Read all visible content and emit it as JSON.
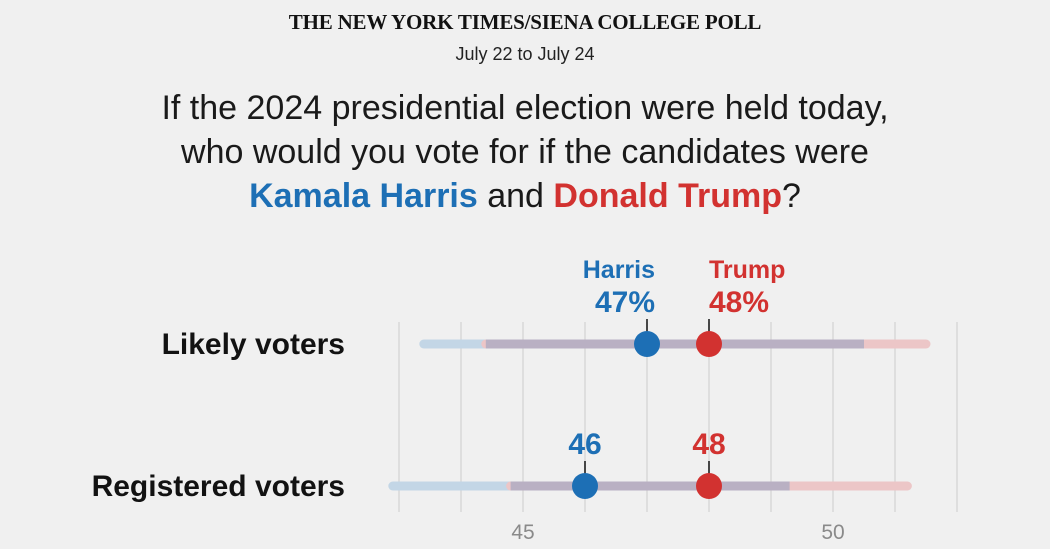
{
  "header": {
    "masthead": "THE NEW YORK TIMES/SIENA COLLEGE POLL",
    "dates": "July 22 to July 24",
    "question_line1": "If the 2024 presidential election were held today,",
    "question_line2": "who would you vote for if the candidates were",
    "candidate_a": "Kamala Harris",
    "joiner": "and",
    "candidate_b": "Donald Trump",
    "end_mark": "?"
  },
  "colors": {
    "harris": "#1d6fb5",
    "trump": "#d23230",
    "harris_range": "#c3d6e6",
    "trump_range": "#ecc6c7",
    "overlap_range": "#b9b0c3",
    "grid": "#d8d8d8",
    "tick_text": "#8a8a8a"
  },
  "chart_data": {
    "type": "dot-range",
    "xlim": [
      42.5,
      52.5
    ],
    "x_ticks": [
      45,
      50
    ],
    "gridlines": [
      43,
      44,
      45,
      46,
      47,
      48,
      49,
      50,
      51,
      52
    ],
    "candidates": [
      "Harris",
      "Trump"
    ],
    "rows": [
      {
        "label": "Likely voters",
        "harris": {
          "value": 47,
          "display": "47%",
          "name_label": "Harris",
          "range": [
            43.4,
            50.5
          ]
        },
        "trump": {
          "value": 48,
          "display": "48%",
          "name_label": "Trump",
          "range": [
            44.4,
            51.5
          ]
        }
      },
      {
        "label": "Registered voters",
        "harris": {
          "value": 46,
          "display": "46",
          "range": [
            42.9,
            49.3
          ]
        },
        "trump": {
          "value": 48,
          "display": "48",
          "range": [
            44.8,
            51.2
          ]
        }
      }
    ]
  }
}
